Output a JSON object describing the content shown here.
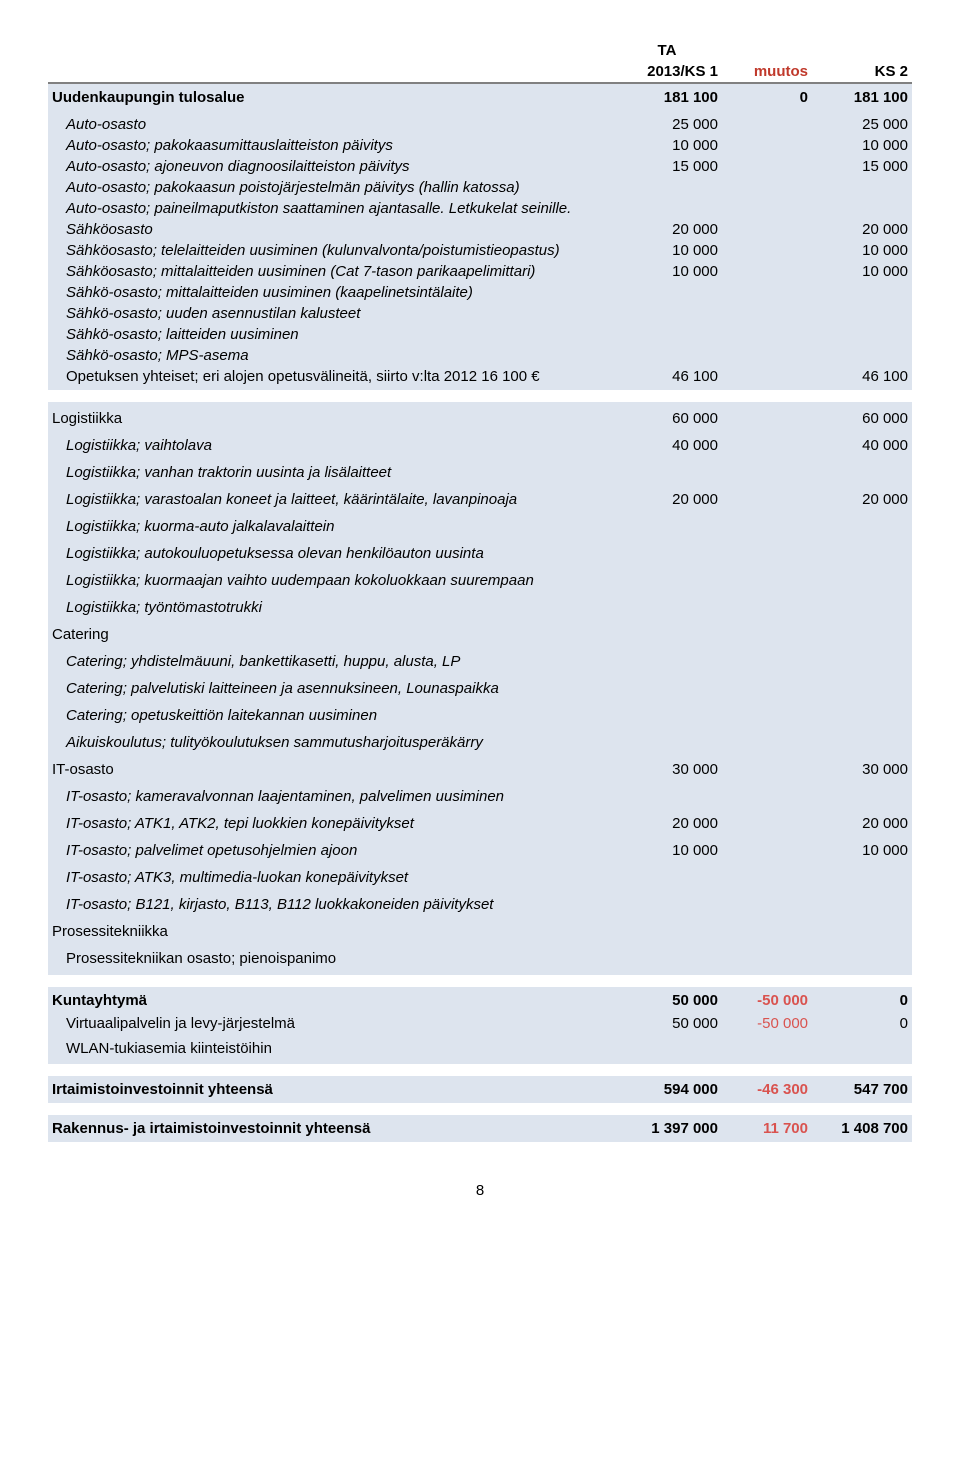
{
  "header": {
    "ta_line1": "TA",
    "ta_line2": "2013/KS 1",
    "muutos": "muutos",
    "ks2": "KS 2"
  },
  "section_uudenkaupunki": {
    "title": "Uudenkaupungin tulosalue",
    "c1": "181 100",
    "c2": "0",
    "c3": "181 100",
    "rows": [
      {
        "label": "Auto-osasto",
        "c1": "25 000",
        "c2": "",
        "c3": "25 000",
        "indent": 1,
        "italic": true
      },
      {
        "label": "Auto-osasto; pakokaasumittauslaitteiston päivitys",
        "c1": "10 000",
        "c2": "",
        "c3": "10 000",
        "indent": 1,
        "italic": true
      },
      {
        "label": "Auto-osasto; ajoneuvon diagnoosilaitteiston päivitys",
        "c1": "15 000",
        "c2": "",
        "c3": "15 000",
        "indent": 1,
        "italic": true
      },
      {
        "label": "Auto-osasto; pakokaasun poistojärjestelmän päivitys (hallin katossa)",
        "c1": "",
        "c2": "",
        "c3": "",
        "indent": 1,
        "italic": true
      },
      {
        "label": "Auto-osasto; paineilmaputkiston saattaminen ajantasalle. Letkukelat seinille.",
        "c1": "",
        "c2": "",
        "c3": "",
        "indent": 1,
        "italic": true
      },
      {
        "label": "Sähköosasto",
        "c1": "20 000",
        "c2": "",
        "c3": "20 000",
        "indent": 1,
        "italic": true
      },
      {
        "label": "Sähköosasto; telelaitteiden uusiminen (kulunvalvonta/poistumistieopastus)",
        "c1": "10 000",
        "c2": "",
        "c3": "10 000",
        "indent": 1,
        "italic": true
      },
      {
        "label": "Sähköosasto; mittalaitteiden uusiminen (Cat 7-tason parikaapelimittari)",
        "c1": "10 000",
        "c2": "",
        "c3": "10 000",
        "indent": 1,
        "italic": true
      },
      {
        "label": "Sähkö-osasto; mittalaitteiden uusiminen (kaapelinetsintälaite)",
        "c1": "",
        "c2": "",
        "c3": "",
        "indent": 1,
        "italic": true
      },
      {
        "label": "Sähkö-osasto; uuden asennustilan kalusteet",
        "c1": "",
        "c2": "",
        "c3": "",
        "indent": 1,
        "italic": true
      },
      {
        "label": "Sähkö-osasto; laitteiden uusiminen",
        "c1": "",
        "c2": "",
        "c3": "",
        "indent": 1,
        "italic": true
      },
      {
        "label": "Sähkö-osasto; MPS-asema",
        "c1": "",
        "c2": "",
        "c3": "",
        "indent": 1,
        "italic": true
      },
      {
        "label": "Opetuksen yhteiset; eri alojen opetusvälineitä, siirto v:lta 2012 16 100 €",
        "c1": "46 100",
        "c2": "",
        "c3": "46 100",
        "indent": 1,
        "italic": false
      }
    ]
  },
  "section_logistiikka": {
    "rows": [
      {
        "label": "Logistiikka",
        "c1": "60 000",
        "c2": "",
        "c3": "60 000",
        "indent": 0,
        "italic": false
      },
      {
        "label": "Logistiikka; vaihtolava",
        "c1": "40 000",
        "c2": "",
        "c3": "40 000",
        "indent": 1,
        "italic": true
      },
      {
        "label": "Logistiikka; vanhan traktorin uusinta ja lisälaitteet",
        "c1": "",
        "c2": "",
        "c3": "",
        "indent": 1,
        "italic": true
      },
      {
        "label": "Logistiikka; varastoalan koneet ja laitteet, käärintälaite, lavanpinoaja",
        "c1": "20 000",
        "c2": "",
        "c3": "20 000",
        "indent": 1,
        "italic": true
      },
      {
        "label": "Logistiikka; kuorma-auto jalkalavalaittein",
        "c1": "",
        "c2": "",
        "c3": "",
        "indent": 1,
        "italic": true
      },
      {
        "label": "Logistiikka; autokouluopetuksessa olevan henkilöauton uusinta",
        "c1": "",
        "c2": "",
        "c3": "",
        "indent": 1,
        "italic": true
      },
      {
        "label": "Logistiikka; kuormaajan vaihto uudempaan kokoluokkaan suurempaan",
        "c1": "",
        "c2": "",
        "c3": "",
        "indent": 1,
        "italic": true
      },
      {
        "label": "Logistiikka; työntömastotrukki",
        "c1": "",
        "c2": "",
        "c3": "",
        "indent": 1,
        "italic": true
      },
      {
        "label": "Catering",
        "c1": "",
        "c2": "",
        "c3": "",
        "indent": 0,
        "italic": false
      },
      {
        "label": "Catering; yhdistelmäuuni, bankettikasetti, huppu, alusta, LP",
        "c1": "",
        "c2": "",
        "c3": "",
        "indent": 1,
        "italic": true
      },
      {
        "label": "Catering; palvelutiski laitteineen ja asennuksineen, Lounaspaikka",
        "c1": "",
        "c2": "",
        "c3": "",
        "indent": 1,
        "italic": true
      },
      {
        "label": "Catering; opetuskeittiön laitekannan uusiminen",
        "c1": "",
        "c2": "",
        "c3": "",
        "indent": 1,
        "italic": true
      },
      {
        "label": "Aikuiskoulutus; tulityökoulutuksen sammutusharjoitusperäkärry",
        "c1": "",
        "c2": "",
        "c3": "",
        "indent": 1,
        "italic": true
      },
      {
        "label": "IT-osasto",
        "c1": "30 000",
        "c2": "",
        "c3": "30 000",
        "indent": 0,
        "italic": false
      },
      {
        "label": "IT-osasto; kameravalvonnan laajentaminen, palvelimen uusiminen",
        "c1": "",
        "c2": "",
        "c3": "",
        "indent": 1,
        "italic": true
      },
      {
        "label": "IT-osasto; ATK1, ATK2, tepi luokkien konepäivitykset",
        "c1": "20 000",
        "c2": "",
        "c3": "20 000",
        "indent": 1,
        "italic": true
      },
      {
        "label": "IT-osasto; palvelimet opetusohjelmien ajoon",
        "c1": "10 000",
        "c2": "",
        "c3": "10 000",
        "indent": 1,
        "italic": true
      },
      {
        "label": "IT-osasto; ATK3, multimedia-luokan konepäivitykset",
        "c1": "",
        "c2": "",
        "c3": "",
        "indent": 1,
        "italic": true
      },
      {
        "label": "IT-osasto; B121, kirjasto, B113, B112 luokkakoneiden päivitykset",
        "c1": "",
        "c2": "",
        "c3": "",
        "indent": 1,
        "italic": true
      },
      {
        "label": "Prosessitekniikka",
        "c1": "",
        "c2": "",
        "c3": "",
        "indent": 0,
        "italic": false
      },
      {
        "label": "Prosessitekniikan osasto; pienoispanimo",
        "c1": "",
        "c2": "",
        "c3": "",
        "indent": 1,
        "italic": false
      }
    ]
  },
  "section_kuntayhtyma": {
    "title": "Kuntayhtymä",
    "c1": "50 000",
    "c2": "-50 000",
    "c3": "0",
    "rows": [
      {
        "label": "Virtuaalipalvelin ja levy-järjestelmä",
        "c1": "50 000",
        "c2": "-50 000",
        "c3": "0",
        "indent": 1,
        "italic": false
      },
      {
        "label": "WLAN-tukiasemia kiinteistöihin",
        "c1": "",
        "c2": "",
        "c3": "",
        "indent": 1,
        "italic": false
      }
    ]
  },
  "section_irtaimisto": {
    "title": "Irtaimistoinvestoinnit yhteensä",
    "c1": "594 000",
    "c2": "-46 300",
    "c3": "547 700"
  },
  "section_rakennus": {
    "title": "Rakennus- ja irtaimistoinvestoinnit yhteensä",
    "c1": "1 397 000",
    "c2": "11 700",
    "c3": "1 408 700"
  },
  "page_number": "8",
  "colors": {
    "shaded_bg": "#dde4ee",
    "neg_color": "#c0392b",
    "pos_color": "#c0392b",
    "text": "#000000",
    "hr": "#808080"
  }
}
